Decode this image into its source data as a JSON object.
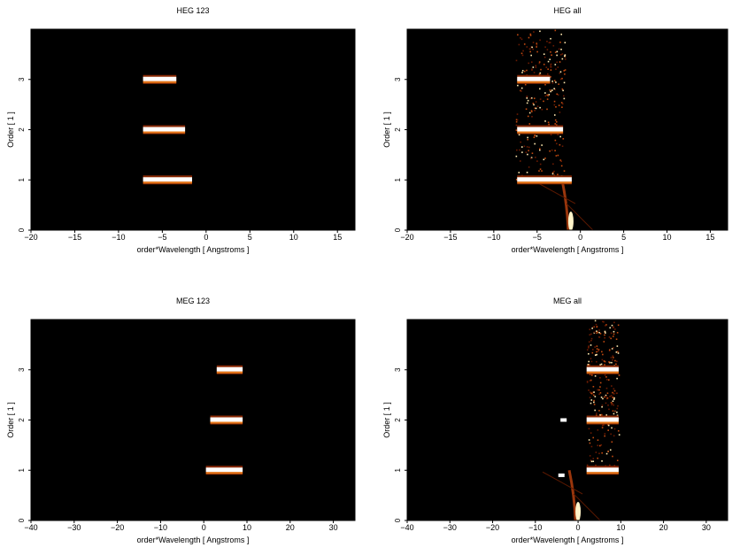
{
  "chart_data": [
    {
      "type": "heatmap",
      "title": "HEG 123",
      "xlabel": "order*Wavelength [ Angstroms ]",
      "ylabel": "Order [ 1 ]",
      "xlim": [
        -20,
        17
      ],
      "ylim": [
        0,
        4
      ],
      "xticks": [
        -20,
        -15,
        -10,
        -5,
        0,
        5,
        10,
        15
      ],
      "yticks": [
        0,
        1,
        2,
        3
      ],
      "grid": false,
      "bands": [
        {
          "order": 1,
          "x_start": -7.2,
          "x_end": -1.6
        },
        {
          "order": 2,
          "x_start": -7.2,
          "x_end": -2.4
        },
        {
          "order": 3,
          "x_start": -7.2,
          "x_end": -3.4
        }
      ],
      "features": []
    },
    {
      "type": "heatmap",
      "title": "HEG all",
      "xlabel": "order*Wavelength [ Angstroms ]",
      "ylabel": "Order [ 1 ]",
      "xlim": [
        -20,
        17
      ],
      "ylim": [
        0,
        4
      ],
      "xticks": [
        -20,
        -15,
        -10,
        -5,
        0,
        5,
        10,
        15
      ],
      "yticks": [
        0,
        1,
        2,
        3
      ],
      "grid": false,
      "bands": [
        {
          "order": 1,
          "x_start": -7.3,
          "x_end": -1.0
        },
        {
          "order": 2,
          "x_start": -7.3,
          "x_end": -2.0
        },
        {
          "order": 3,
          "x_start": -7.3,
          "x_end": -3.5
        }
      ],
      "features": [
        {
          "kind": "scatter-cloud",
          "x_start": -7.5,
          "x_end": -1.8,
          "y_start": 1.0,
          "y_end": 4.0
        },
        {
          "kind": "zero-order-streak",
          "x": -1.1,
          "y_start": 0.0,
          "y_end": 1.0
        }
      ]
    },
    {
      "type": "heatmap",
      "title": "MEG 123",
      "xlabel": "order*Wavelength [ Angstroms ]",
      "ylabel": "Order [ 1 ]",
      "xlim": [
        -40,
        35
      ],
      "ylim": [
        0,
        4
      ],
      "xticks": [
        -40,
        -30,
        -20,
        -10,
        0,
        10,
        20,
        30
      ],
      "yticks": [
        0,
        1,
        2,
        3
      ],
      "grid": false,
      "bands": [
        {
          "order": 1,
          "x_start": 0.5,
          "x_end": 9.0
        },
        {
          "order": 2,
          "x_start": 1.5,
          "x_end": 9.0
        },
        {
          "order": 3,
          "x_start": 3.0,
          "x_end": 9.0
        }
      ],
      "features": []
    },
    {
      "type": "heatmap",
      "title": "MEG all",
      "xlabel": "order*Wavelength [ Angstroms ]",
      "ylabel": "Order [ 1 ]",
      "xlim": [
        -40,
        35
      ],
      "ylim": [
        0,
        4
      ],
      "xticks": [
        -40,
        -30,
        -20,
        -10,
        0,
        10,
        20,
        30
      ],
      "yticks": [
        0,
        1,
        2,
        3
      ],
      "grid": false,
      "bands": [
        {
          "order": 1,
          "x_start": 2.0,
          "x_end": 9.5
        },
        {
          "order": 2,
          "x_start": 2.0,
          "x_end": 9.5
        },
        {
          "order": 3,
          "x_start": 2.0,
          "x_end": 9.5
        }
      ],
      "features": [
        {
          "kind": "scatter-cloud",
          "x_start": 2.0,
          "x_end": 9.5,
          "y_start": 1.0,
          "y_end": 4.0
        },
        {
          "kind": "zero-order-streak",
          "x": 0.0,
          "y_start": 0.0,
          "y_end": 1.0
        },
        {
          "kind": "blob",
          "x": -3.5,
          "y": 2.0
        },
        {
          "kind": "blob",
          "x": -4.0,
          "y": 0.9
        }
      ]
    }
  ]
}
